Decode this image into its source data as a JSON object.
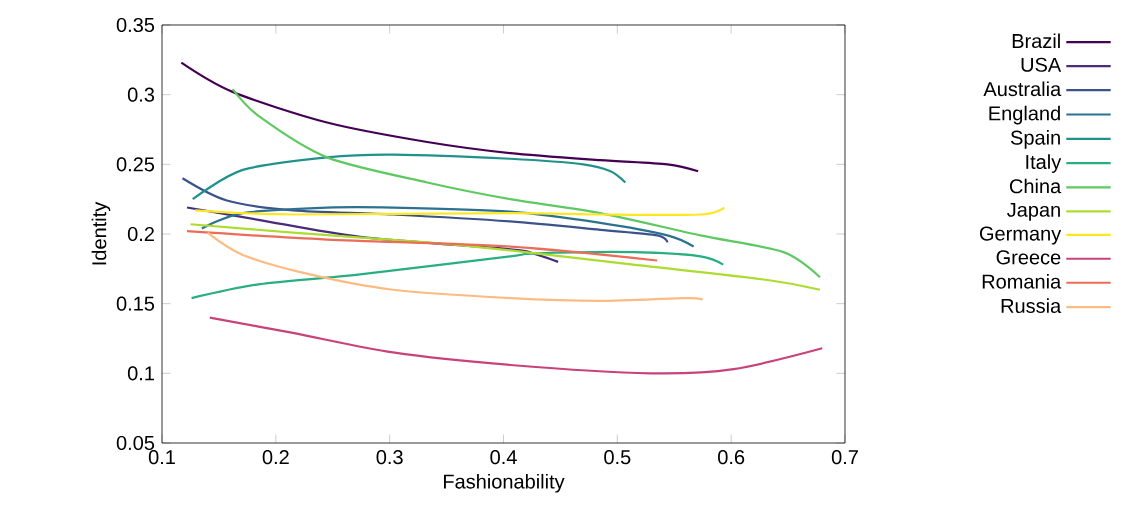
{
  "chart_data": {
    "type": "line",
    "xlabel": "Fashionability",
    "ylabel": "Identity",
    "xlim": [
      0.1,
      0.7
    ],
    "xticks": [
      0.1,
      0.2,
      0.3,
      0.4,
      0.5,
      0.6,
      0.7
    ],
    "ylim": [
      0.05,
      0.35
    ],
    "yticks": [
      0.05,
      0.1,
      0.15,
      0.2,
      0.25,
      0.3,
      0.35
    ],
    "legend": "right",
    "grid": false,
    "marker": "none",
    "line_style": "solid",
    "series": [
      {
        "name": "Brazil",
        "color": "#440154",
        "x": [
          0.117,
          0.162,
          0.245,
          0.333,
          0.406,
          0.485,
          0.544,
          0.571
        ],
        "values": [
          0.323,
          0.302,
          0.28,
          0.266,
          0.258,
          0.253,
          0.25,
          0.245
        ]
      },
      {
        "name": "USA",
        "color": "#472d7b",
        "x": [
          0.122,
          0.186,
          0.274,
          0.406,
          0.426,
          0.448
        ],
        "values": [
          0.219,
          0.21,
          0.198,
          0.189,
          0.186,
          0.18
        ]
      },
      {
        "name": "Australia",
        "color": "#3b528b",
        "x": [
          0.118,
          0.157,
          0.215,
          0.303,
          0.406,
          0.485,
          0.535,
          0.544
        ],
        "values": [
          0.24,
          0.224,
          0.217,
          0.214,
          0.209,
          0.203,
          0.199,
          0.194
        ]
      },
      {
        "name": "England",
        "color": "#2c728e",
        "x": [
          0.135,
          0.171,
          0.245,
          0.303,
          0.406,
          0.485,
          0.544,
          0.567
        ],
        "values": [
          0.204,
          0.215,
          0.219,
          0.219,
          0.216,
          0.208,
          0.199,
          0.191
        ]
      },
      {
        "name": "Spain",
        "color": "#21918c",
        "x": [
          0.127,
          0.171,
          0.245,
          0.303,
          0.406,
          0.47,
          0.494,
          0.507
        ],
        "values": [
          0.225,
          0.246,
          0.255,
          0.257,
          0.254,
          0.25,
          0.245,
          0.237
        ]
      },
      {
        "name": "Italy",
        "color": "#28ae80",
        "x": [
          0.126,
          0.186,
          0.274,
          0.406,
          0.426,
          0.514,
          0.573,
          0.593
        ],
        "values": [
          0.154,
          0.164,
          0.171,
          0.184,
          0.186,
          0.187,
          0.184,
          0.178
        ]
      },
      {
        "name": "China",
        "color": "#5ec962",
        "x": [
          0.162,
          0.186,
          0.245,
          0.333,
          0.406,
          0.485,
          0.573,
          0.646,
          0.678
        ],
        "values": [
          0.304,
          0.284,
          0.255,
          0.237,
          0.225,
          0.215,
          0.199,
          0.187,
          0.169
        ]
      },
      {
        "name": "Japan",
        "color": "#addc30",
        "x": [
          0.125,
          0.215,
          0.333,
          0.397,
          0.514,
          0.632,
          0.678
        ],
        "values": [
          0.207,
          0.201,
          0.194,
          0.189,
          0.178,
          0.167,
          0.16
        ]
      },
      {
        "name": "Germany",
        "color": "#fde725",
        "x": [
          0.129,
          0.215,
          0.406,
          0.485,
          0.573,
          0.594
        ],
        "values": [
          0.217,
          0.214,
          0.215,
          0.214,
          0.214,
          0.219
        ]
      },
      {
        "name": "Greece",
        "color": "#c8437a",
        "x": [
          0.142,
          0.215,
          0.303,
          0.406,
          0.529,
          0.602,
          0.68
        ],
        "values": [
          0.14,
          0.129,
          0.115,
          0.106,
          0.1,
          0.103,
          0.118
        ]
      },
      {
        "name": "Romania",
        "color": "#eb6c58",
        "x": [
          0.122,
          0.245,
          0.406,
          0.535
        ],
        "values": [
          0.202,
          0.196,
          0.191,
          0.181
        ]
      },
      {
        "name": "Russia",
        "color": "#febb81",
        "x": [
          0.14,
          0.171,
          0.23,
          0.303,
          0.406,
          0.485,
          0.558,
          0.575
        ],
        "values": [
          0.201,
          0.185,
          0.171,
          0.16,
          0.154,
          0.152,
          0.154,
          0.153
        ]
      }
    ]
  }
}
